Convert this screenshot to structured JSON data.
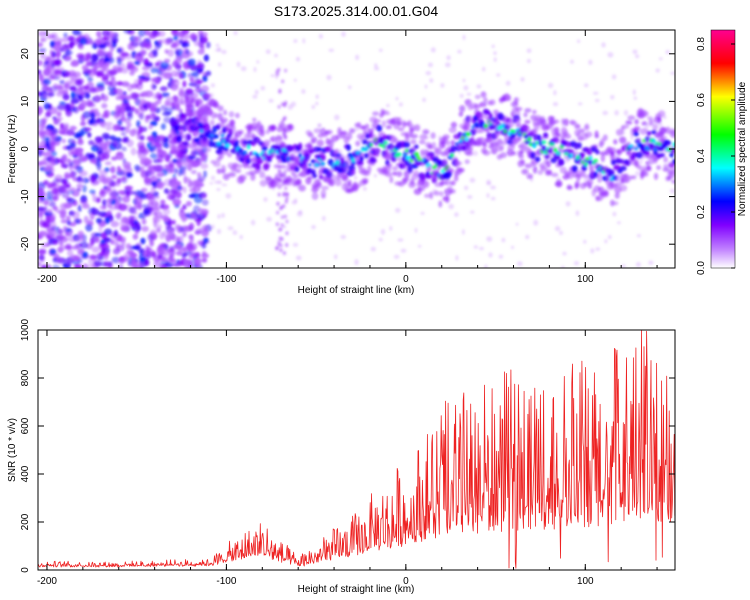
{
  "title": "S173.2025.314.00.01.G04",
  "chart_data": [
    {
      "type": "heatmap",
      "xlabel": "Height of straight line (km)",
      "ylabel": "Frequency (Hz)",
      "xlim": [
        -205,
        150
      ],
      "ylim": [
        -25,
        25
      ],
      "x_ticks": [
        -200,
        -100,
        0,
        100
      ],
      "x_tick_labels": [
        "-200",
        "-100",
        "0",
        "100"
      ],
      "y_ticks": [
        -20,
        -10,
        0,
        10,
        20
      ],
      "y_tick_labels": [
        "-20",
        "-10",
        "0",
        "10",
        "20"
      ],
      "colorbar": {
        "label": "Normalized spectral amplitude",
        "range": [
          0,
          0.85
        ],
        "ticks": [
          0,
          0.2,
          0.4,
          0.6,
          0.8
        ],
        "tick_labels": [
          "0.0",
          "0.2",
          "0.4",
          "0.6",
          "0.8"
        ],
        "colors": [
          "#ffffff",
          "#8000ff",
          "#0000ff",
          "#00ffff",
          "#00ff00",
          "#ffff00",
          "#ff0000",
          "#ff00ff"
        ]
      },
      "ridge": {
        "description": "dominant frequency ridge vs height",
        "x": [
          -110,
          -100,
          -90,
          -80,
          -70,
          -60,
          -50,
          -40,
          -30,
          -20,
          -15,
          -10,
          0,
          10,
          20,
          25,
          30,
          40,
          50,
          60,
          70,
          80,
          90,
          100,
          110,
          115,
          120,
          130,
          140,
          150
        ],
        "y": [
          4,
          1,
          0,
          -1,
          -1,
          -2,
          -3,
          -3,
          -2,
          0,
          2,
          0,
          -1,
          -3,
          -5,
          -3,
          2,
          5,
          5,
          4,
          1,
          0,
          -1,
          -2,
          -4,
          -6,
          -2,
          1,
          1,
          0
        ]
      }
    },
    {
      "type": "line",
      "xlabel": "Height of straight line (km)",
      "ylabel": "SNR (10 * v/v)",
      "xlim": [
        -205,
        150
      ],
      "ylim": [
        0,
        1000
      ],
      "x_ticks": [
        -200,
        -100,
        0,
        100
      ],
      "x_tick_labels": [
        "-200",
        "-100",
        "0",
        "100"
      ],
      "y_ticks": [
        0,
        200,
        400,
        600,
        800,
        1000
      ],
      "y_tick_labels": [
        "0",
        "200",
        "400",
        "600",
        "800",
        "1000"
      ],
      "series": [
        {
          "name": "SNR",
          "color": "#ee2222",
          "envelope": {
            "x": [
              -205,
              -150,
              -110,
              -100,
              -90,
              -80,
              -70,
              -60,
              -50,
              -40,
              -30,
              -20,
              -10,
              0,
              20,
              40,
              60,
              80,
              100,
              120,
              130,
              150
            ],
            "baseline": [
              15,
              15,
              20,
              35,
              50,
              60,
              40,
              15,
              30,
              50,
              60,
              80,
              100,
              120,
              150,
              180,
              200,
              200,
              200,
              220,
              220,
              220
            ],
            "peak": [
              35,
              35,
              45,
              100,
              160,
              220,
              120,
              60,
              120,
              170,
              220,
              300,
              380,
              450,
              700,
              750,
              800,
              800,
              850,
              950,
              1000,
              900
            ]
          }
        }
      ]
    }
  ]
}
